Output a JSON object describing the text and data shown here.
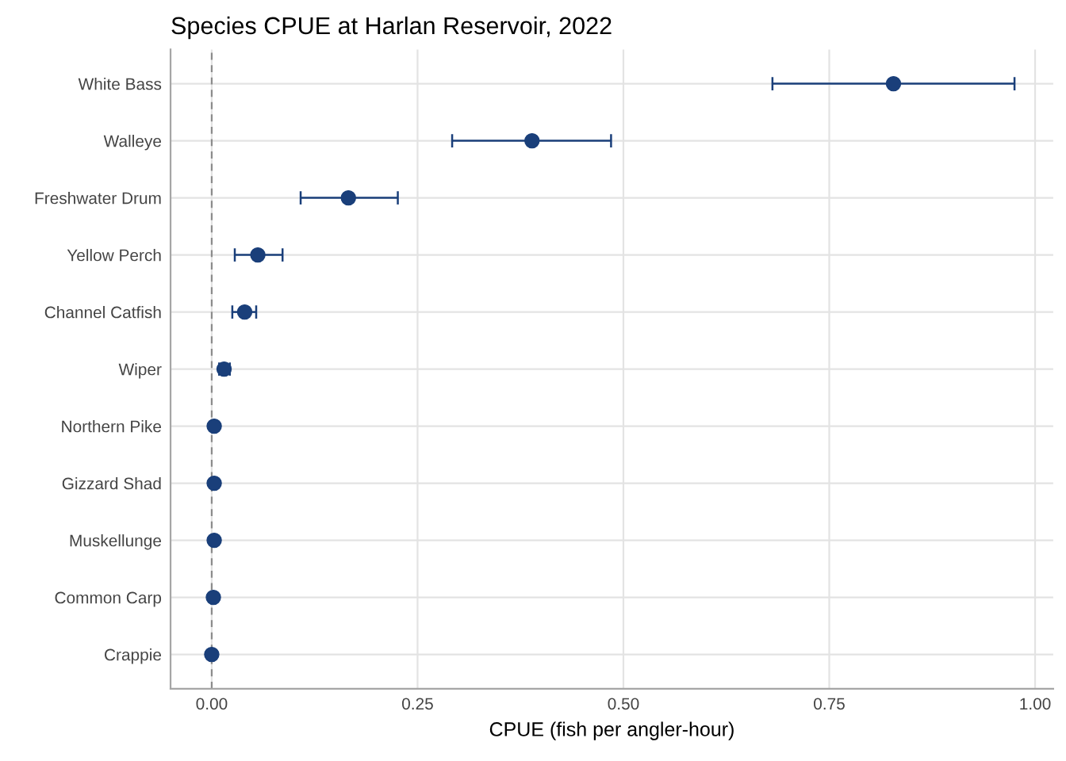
{
  "chart_data": {
    "type": "scatter",
    "orientation": "horizontal",
    "title": "Species CPUE at Harlan Reservoir, 2022",
    "xlabel": "CPUE (fish per angler-hour)",
    "categories": [
      "White Bass",
      "Walleye",
      "Freshwater Drum",
      "Yellow Perch",
      "Channel Catfish",
      "Wiper",
      "Northern Pike",
      "Gizzard Shad",
      "Muskellunge",
      "Common Carp",
      "Crappie"
    ],
    "color": "#1a3f7a",
    "values": [
      0.828,
      0.389,
      0.166,
      0.056,
      0.04,
      0.015,
      0.003,
      0.003,
      0.003,
      0.002,
      0.0
    ],
    "errors": [
      [
        0.681,
        0.975
      ],
      [
        0.292,
        0.485
      ],
      [
        0.108,
        0.226
      ],
      [
        0.028,
        0.086
      ],
      [
        0.025,
        0.054
      ],
      [
        0.009,
        0.022
      ],
      null,
      null,
      null,
      null,
      null
    ],
    "xlim": [
      -0.05,
      1.022
    ],
    "xticks": [
      {
        "value": 0,
        "label": "0.00"
      },
      {
        "value": 0.25,
        "label": "0.25"
      },
      {
        "value": 0.5,
        "label": "0.50"
      },
      {
        "value": 0.75,
        "label": "0.75"
      },
      {
        "value": 1,
        "label": "1.00"
      }
    ],
    "ref_lines": [
      {
        "axis": "x",
        "value": 0,
        "label": null,
        "color": "#8c8c8c",
        "line_style": "dashed"
      }
    ],
    "grid": true,
    "marker": "circle",
    "legend": false
  }
}
